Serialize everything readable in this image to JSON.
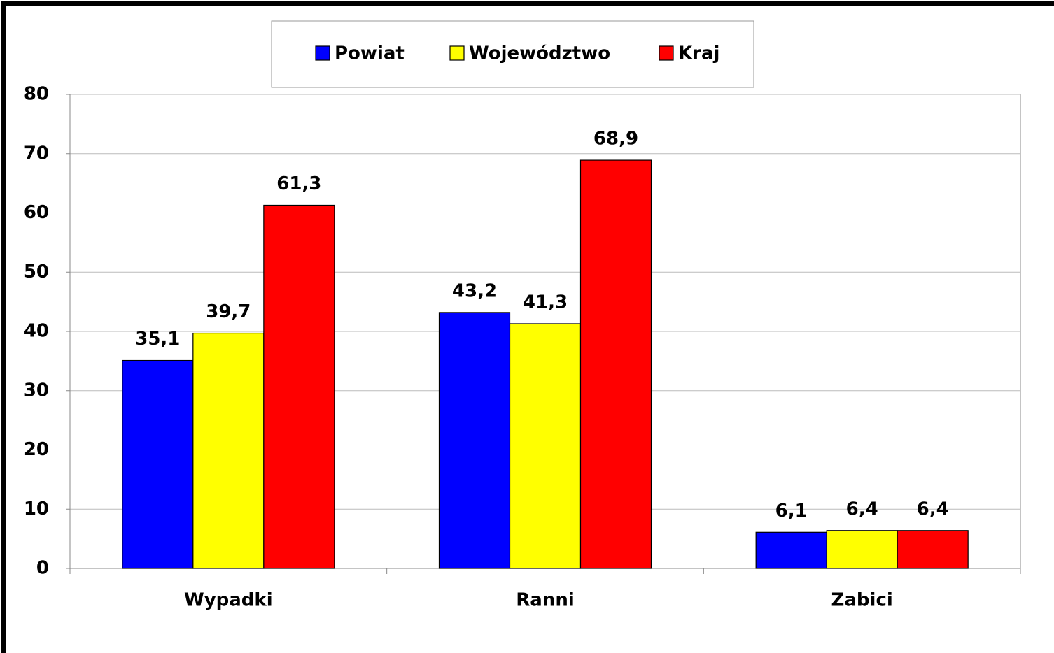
{
  "chart_data": {
    "type": "bar",
    "categories": [
      "Wypadki",
      "Ranni",
      "Zabici"
    ],
    "series": [
      {
        "name": "Powiat",
        "color": "#0000ff",
        "values": [
          35.1,
          43.2,
          6.1
        ],
        "value_labels": [
          "35,1",
          "43,2",
          "6,1"
        ]
      },
      {
        "name": "Województwo",
        "color": "#ffff00",
        "values": [
          39.7,
          41.3,
          6.4
        ],
        "value_labels": [
          "39,7",
          "41,3",
          "6,4"
        ]
      },
      {
        "name": "Kraj",
        "color": "#ff0000",
        "values": [
          61.3,
          68.9,
          6.4
        ],
        "value_labels": [
          "61,3",
          "68,9",
          "6,4"
        ]
      }
    ],
    "ylim": [
      0,
      80
    ],
    "yticks": [
      0,
      10,
      20,
      30,
      40,
      50,
      60,
      70,
      80
    ],
    "grid": true,
    "legend": "top"
  }
}
